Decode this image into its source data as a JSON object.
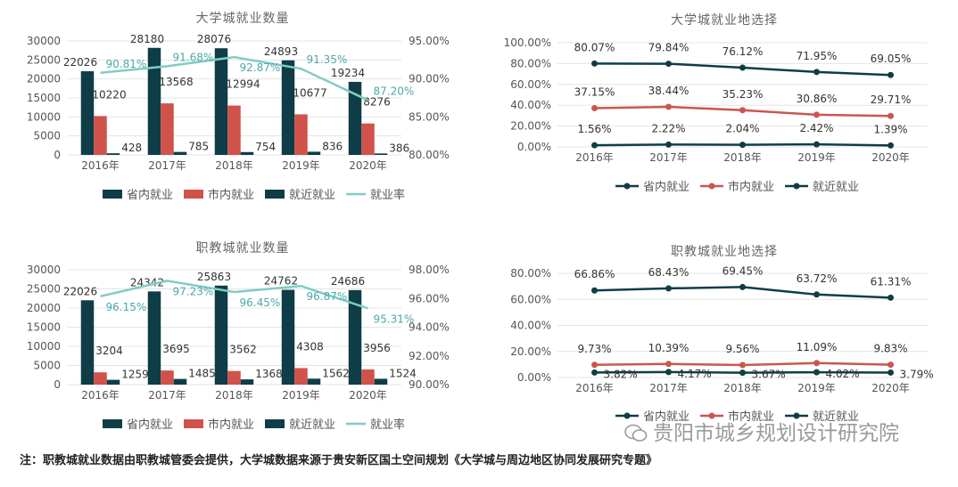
{
  "chart_data": [
    {
      "type": "bar",
      "title": "大学城就业数量",
      "categories": [
        "2016年",
        "2017年",
        "2018年",
        "2019年",
        "2020年"
      ],
      "series": [
        {
          "name": "省内就业",
          "kind": "bar",
          "axis": "left",
          "color": "#0f3d47",
          "values": [
            22026,
            28180,
            28076,
            24893,
            19234
          ]
        },
        {
          "name": "市内就业",
          "kind": "bar",
          "axis": "left",
          "color": "#d0524a",
          "values": [
            10220,
            13568,
            12994,
            10677,
            8276
          ]
        },
        {
          "name": "就近就业",
          "kind": "bar",
          "axis": "left",
          "color": "#0f3d47",
          "values": [
            428,
            785,
            754,
            836,
            386
          ]
        },
        {
          "name": "就业率",
          "kind": "line",
          "axis": "right",
          "color": "#7fcdc4",
          "values": [
            90.81,
            91.68,
            92.87,
            91.35,
            87.2
          ]
        }
      ],
      "ylim": [
        0,
        30000
      ],
      "yticks": [
        0,
        5000,
        10000,
        15000,
        20000,
        25000,
        30000
      ],
      "y2lim": [
        80,
        95
      ],
      "y2ticks": [
        "80.00%",
        "85.00%",
        "90.00%",
        "95.00%"
      ],
      "legend": "bottom",
      "grid": true
    },
    {
      "type": "line",
      "title": "大学城就业地选择",
      "categories": [
        "2016年",
        "2017年",
        "2018年",
        "2019年",
        "2020年"
      ],
      "series": [
        {
          "name": "省内就业",
          "color": "#0f3d47",
          "values": [
            80.07,
            79.84,
            76.12,
            71.95,
            69.05
          ]
        },
        {
          "name": "市内就业",
          "color": "#c9574f",
          "values": [
            37.15,
            38.44,
            35.23,
            30.86,
            29.71
          ]
        },
        {
          "name": "就近就业",
          "color": "#0f3d47",
          "values": [
            1.56,
            2.22,
            2.04,
            2.42,
            1.39
          ]
        }
      ],
      "ylim": [
        0,
        100
      ],
      "yticks": [
        "0.00%",
        "20.00%",
        "40.00%",
        "60.00%",
        "80.00%",
        "100.00%"
      ],
      "legend": "bottom",
      "grid": true
    },
    {
      "type": "bar",
      "title": "职教城就业数量",
      "categories": [
        "2016年",
        "2017年",
        "2018年",
        "2019年",
        "2020年"
      ],
      "series": [
        {
          "name": "省内就业",
          "kind": "bar",
          "axis": "left",
          "color": "#0f3d47",
          "values": [
            22026,
            24342,
            25863,
            24762,
            24686
          ]
        },
        {
          "name": "市内就业",
          "kind": "bar",
          "axis": "left",
          "color": "#d0524a",
          "values": [
            3204,
            3695,
            3562,
            4308,
            3956
          ]
        },
        {
          "name": "就近就业",
          "kind": "bar",
          "axis": "left",
          "color": "#0f3d47",
          "values": [
            1259,
            1485,
            1368,
            1562,
            1524
          ]
        },
        {
          "name": "就业率",
          "kind": "line",
          "axis": "right",
          "color": "#7fcdc4",
          "values": [
            96.15,
            97.23,
            96.45,
            96.87,
            95.31
          ]
        }
      ],
      "ylim": [
        0,
        30000
      ],
      "yticks": [
        0,
        5000,
        10000,
        15000,
        20000,
        25000,
        30000
      ],
      "y2lim": [
        90,
        98
      ],
      "y2ticks": [
        "90.00%",
        "92.00%",
        "94.00%",
        "96.00%",
        "98.00%"
      ],
      "legend": "bottom",
      "grid": true
    },
    {
      "type": "line",
      "title": "职教城就业地选择",
      "categories": [
        "2016年",
        "2017年",
        "2018年",
        "2019年",
        "2020年"
      ],
      "series": [
        {
          "name": "省内就业",
          "color": "#0f3d47",
          "values": [
            66.86,
            68.43,
            69.45,
            63.72,
            61.31
          ]
        },
        {
          "name": "市内就业",
          "color": "#c9574f",
          "values": [
            9.73,
            10.39,
            9.56,
            11.09,
            9.83
          ]
        },
        {
          "name": "就近就业",
          "color": "#0f3d47",
          "values": [
            3.82,
            4.17,
            3.67,
            4.02,
            3.79
          ]
        }
      ],
      "ylim": [
        0,
        80
      ],
      "yticks": [
        "0.00%",
        "20.00%",
        "40.00%",
        "60.00%",
        "80.00%"
      ],
      "legend": "bottom",
      "grid": true
    }
  ],
  "footer": {
    "note": "注：职教城就业数据由职教城管委会提供，大学城数据来源于贵安新区国土空间规划《大学城与周边地区协同发展研究专题》"
  },
  "watermark": {
    "text": "贵阳市城乡规划设计研究院",
    "icon": "wechat-icon"
  }
}
